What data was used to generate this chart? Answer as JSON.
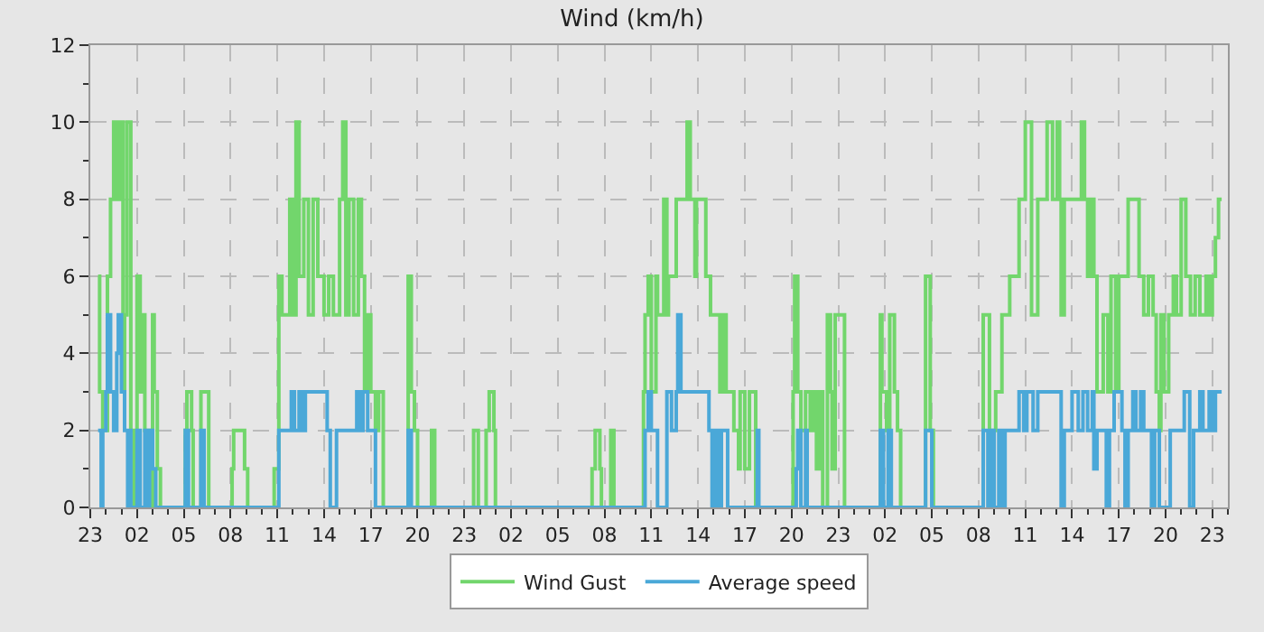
{
  "chart_data": {
    "type": "step",
    "title": "Wind (km/h)",
    "xlim": [
      "--01-01T23:00",
      "--01-05T00:00"
    ],
    "ylim": [
      0,
      12
    ],
    "xticks": [
      {
        "value": "--01-01T23:00",
        "label": "23"
      },
      {
        "value": "--01-02T00:00",
        "label": null
      },
      {
        "value": "--01-02T01:00",
        "label": null
      },
      {
        "value": "--01-02T02:00",
        "label": "02"
      },
      {
        "value": "--01-02T03:00",
        "label": null
      },
      {
        "value": "--01-02T04:00",
        "label": null
      },
      {
        "value": "--01-02T05:00",
        "label": "05"
      },
      {
        "value": "--01-02T06:00",
        "label": null
      },
      {
        "value": "--01-02T07:00",
        "label": null
      },
      {
        "value": "--01-02T08:00",
        "label": "08"
      },
      {
        "value": "--01-02T09:00",
        "label": null
      },
      {
        "value": "--01-02T10:00",
        "label": null
      },
      {
        "value": "--01-02T11:00",
        "label": "11"
      },
      {
        "value": "--01-02T12:00",
        "label": null
      },
      {
        "value": "--01-02T13:00",
        "label": null
      },
      {
        "value": "--01-02T14:00",
        "label": "14"
      },
      {
        "value": "--01-02T15:00",
        "label": null
      },
      {
        "value": "--01-02T16:00",
        "label": null
      },
      {
        "value": "--01-02T17:00",
        "label": "17"
      },
      {
        "value": "--01-02T18:00",
        "label": null
      },
      {
        "value": "--01-02T19:00",
        "label": null
      },
      {
        "value": "--01-02T20:00",
        "label": "20"
      },
      {
        "value": "--01-02T21:00",
        "label": null
      },
      {
        "value": "--01-02T22:00",
        "label": null
      },
      {
        "value": "--01-02T23:00",
        "label": "23"
      },
      {
        "value": "--01-03T00:00",
        "label": null
      },
      {
        "value": "--01-03T01:00",
        "label": null
      },
      {
        "value": "--01-03T02:00",
        "label": "02"
      },
      {
        "value": "--01-03T03:00",
        "label": null
      },
      {
        "value": "--01-03T04:00",
        "label": null
      },
      {
        "value": "--01-03T05:00",
        "label": "05"
      },
      {
        "value": "--01-03T06:00",
        "label": null
      },
      {
        "value": "--01-03T07:00",
        "label": null
      },
      {
        "value": "--01-03T08:00",
        "label": "08"
      },
      {
        "value": "--01-03T09:00",
        "label": null
      },
      {
        "value": "--01-03T10:00",
        "label": null
      },
      {
        "value": "--01-03T11:00",
        "label": "11"
      },
      {
        "value": "--01-03T12:00",
        "label": null
      },
      {
        "value": "--01-03T13:00",
        "label": null
      },
      {
        "value": "--01-03T14:00",
        "label": "14"
      },
      {
        "value": "--01-03T15:00",
        "label": null
      },
      {
        "value": "--01-03T16:00",
        "label": null
      },
      {
        "value": "--01-03T17:00",
        "label": "17"
      },
      {
        "value": "--01-03T18:00",
        "label": null
      },
      {
        "value": "--01-03T19:00",
        "label": null
      },
      {
        "value": "--01-03T20:00",
        "label": "20"
      },
      {
        "value": "--01-03T21:00",
        "label": null
      },
      {
        "value": "--01-03T22:00",
        "label": null
      },
      {
        "value": "--01-03T23:00",
        "label": "23"
      },
      {
        "value": "--01-04T00:00",
        "label": null
      },
      {
        "value": "--01-04T01:00",
        "label": null
      },
      {
        "value": "--01-04T02:00",
        "label": "02"
      },
      {
        "value": "--01-04T03:00",
        "label": null
      },
      {
        "value": "--01-04T04:00",
        "label": null
      },
      {
        "value": "--01-04T05:00",
        "label": "05"
      },
      {
        "value": "--01-04T06:00",
        "label": null
      },
      {
        "value": "--01-04T07:00",
        "label": null
      },
      {
        "value": "--01-04T08:00",
        "label": "08"
      },
      {
        "value": "--01-04T09:00",
        "label": null
      },
      {
        "value": "--01-04T10:00",
        "label": null
      },
      {
        "value": "--01-04T11:00",
        "label": "11"
      },
      {
        "value": "--01-04T12:00",
        "label": null
      },
      {
        "value": "--01-04T13:00",
        "label": null
      },
      {
        "value": "--01-04T14:00",
        "label": "14"
      },
      {
        "value": "--01-04T15:00",
        "label": null
      },
      {
        "value": "--01-04T16:00",
        "label": null
      },
      {
        "value": "--01-04T17:00",
        "label": "17"
      },
      {
        "value": "--01-04T18:00",
        "label": null
      },
      {
        "value": "--01-04T19:00",
        "label": null
      },
      {
        "value": "--01-04T20:00",
        "label": "20"
      },
      {
        "value": "--01-04T21:00",
        "label": null
      },
      {
        "value": "--01-04T22:00",
        "label": null
      },
      {
        "value": "--01-04T23:00",
        "label": "23"
      },
      {
        "value": "--01-05T00:00",
        "label": null
      }
    ],
    "yticks": [
      0,
      {
        "value": 1,
        "label": null
      },
      2,
      {
        "value": 3,
        "label": null
      },
      4,
      {
        "value": 5,
        "label": null
      },
      6,
      {
        "value": 7,
        "label": null
      },
      8,
      {
        "value": 9,
        "label": null
      },
      10,
      {
        "value": 11,
        "label": null
      },
      12
    ],
    "grid": true,
    "legend": "bottom",
    "marker": "none",
    "line_style": "solid",
    "series": [
      {
        "name": "Wind Gust",
        "color": "#72d66c",
        "x": [
          "--01-01T23:30",
          "--01-01T23:36",
          "--01-01T23:48",
          "--01-02T00:06",
          "--01-02T00:18",
          "--01-02T00:30",
          "--01-02T00:42",
          "--01-02T00:54",
          "--01-02T01:06",
          "--01-02T01:12",
          "--01-02T01:21",
          "--01-02T01:36",
          "--01-02T01:48",
          "--01-02T02:00",
          "--01-02T02:12",
          "--01-02T02:24",
          "--01-02T02:30",
          "--01-02T02:48",
          "--01-02T03:00",
          "--01-02T03:06",
          "--01-02T03:18",
          "--01-02T03:30",
          "--01-02T05:06",
          "--01-02T05:12",
          "--01-02T05:30",
          "--01-02T05:36",
          "--01-02T06:06",
          "--01-02T06:36",
          "--01-02T08:06",
          "--01-02T08:12",
          "--01-02T08:54",
          "--01-02T09:06",
          "--01-02T10:48",
          "--01-02T11:06",
          "--01-02T11:18",
          "--01-02T11:48",
          "--01-02T12:00",
          "--01-02T12:12",
          "--01-02T12:24",
          "--01-02T12:42",
          "--01-02T13:00",
          "--01-02T13:18",
          "--01-02T13:36",
          "--01-02T14:00",
          "--01-02T14:18",
          "--01-02T14:36",
          "--01-02T15:00",
          "--01-02T15:12",
          "--01-02T15:24",
          "--01-02T15:36",
          "--01-02T15:54",
          "--01-02T16:12",
          "--01-02T16:24",
          "--01-02T16:36",
          "--01-02T16:48",
          "--01-02T17:00",
          "--01-02T17:18",
          "--01-02T17:30",
          "--01-02T17:48",
          "--01-02T19:24",
          "--01-02T19:36",
          "--01-02T19:48",
          "--01-02T20:00",
          "--01-02T20:54",
          "--01-02T21:06",
          "--01-02T23:36",
          "--01-02T23:54",
          "--01-03T00:24",
          "--01-03T00:36",
          "--01-03T00:54",
          "--01-03T01:00",
          "--01-03T07:12",
          "--01-03T07:24",
          "--01-03T07:42",
          "--01-03T07:48",
          "--01-03T08:24",
          "--01-03T08:36",
          "--01-03T10:30",
          "--01-03T10:36",
          "--01-03T10:48",
          "--01-03T11:00",
          "--01-03T11:18",
          "--01-03T11:24",
          "--01-03T11:48",
          "--01-03T12:00",
          "--01-03T12:06",
          "--01-03T12:36",
          "--01-03T13:18",
          "--01-03T13:30",
          "--01-03T13:48",
          "--01-03T13:54",
          "--01-03T14:30",
          "--01-03T14:48",
          "--01-03T15:24",
          "--01-03T15:36",
          "--01-03T15:48",
          "--01-03T16:06",
          "--01-03T16:18",
          "--01-03T16:36",
          "--01-03T16:42",
          "--01-03T17:00",
          "--01-03T17:18",
          "--01-03T17:42",
          "--01-03T20:06",
          "--01-03T20:12",
          "--01-03T20:24",
          "--01-03T20:36",
          "--01-03T20:54",
          "--01-03T21:12",
          "--01-03T21:24",
          "--01-03T21:36",
          "--01-03T21:48",
          "--01-03T22:00",
          "--01-03T22:18",
          "--01-03T22:30",
          "--01-03T22:36",
          "--01-03T22:48",
          "--01-03T23:24",
          "--01-04T01:42",
          "--01-04T01:48",
          "--01-04T02:06",
          "--01-04T02:18",
          "--01-04T02:36",
          "--01-04T02:48",
          "--01-04T03:00",
          "--01-04T04:36",
          "--01-04T04:54",
          "--01-04T05:06",
          "--01-04T08:18",
          "--01-04T08:42",
          "--01-04T09:06",
          "--01-04T09:30",
          "--01-04T10:00",
          "--01-04T10:36",
          "--01-04T11:00",
          "--01-04T11:24",
          "--01-04T11:48",
          "--01-04T12:24",
          "--01-04T12:45",
          "--01-04T13:03",
          "--01-04T13:12",
          "--01-04T13:18",
          "--01-04T13:30",
          "--01-04T14:36",
          "--01-04T14:48",
          "--01-04T15:00",
          "--01-04T15:12",
          "--01-04T15:24",
          "--01-04T15:36",
          "--01-04T16:00",
          "--01-04T16:18",
          "--01-04T16:30",
          "--01-04T16:48",
          "--01-04T17:00",
          "--01-04T17:36",
          "--01-04T18:18",
          "--01-04T18:36",
          "--01-04T18:54",
          "--01-04T19:12",
          "--01-04T19:24",
          "--01-04T19:36",
          "--01-04T19:42",
          "--01-04T19:54",
          "--01-04T20:12",
          "--01-04T20:30",
          "--01-04T20:42",
          "--01-04T21:00",
          "--01-04T21:18",
          "--01-04T21:36",
          "--01-04T21:54",
          "--01-04T22:12",
          "--01-04T22:36",
          "--01-04T22:48",
          "--01-04T23:00",
          "--01-04T23:12",
          "--01-04T23:24",
          "--01-04T23:36"
        ],
        "values": [
          6,
          3,
          2,
          6,
          8,
          10,
          8,
          10,
          3,
          5,
          10,
          2,
          0,
          6,
          3,
          5,
          2,
          0,
          5,
          3,
          1,
          0,
          2,
          3,
          2,
          0,
          3,
          0,
          1,
          2,
          1,
          0,
          1,
          6,
          5,
          8,
          5,
          10,
          6,
          8,
          5,
          8,
          6,
          5,
          6,
          5,
          8,
          10,
          5,
          8,
          5,
          8,
          6,
          3,
          5,
          3,
          2,
          3,
          0,
          6,
          3,
          2,
          0,
          2,
          0,
          2,
          0,
          2,
          3,
          2,
          0,
          1,
          2,
          1,
          0,
          2,
          0,
          3,
          5,
          6,
          3,
          6,
          5,
          8,
          5,
          6,
          8,
          10,
          8,
          6,
          8,
          6,
          5,
          3,
          5,
          3,
          3,
          2,
          1,
          3,
          1,
          3,
          0,
          3,
          6,
          3,
          2,
          3,
          2,
          3,
          1,
          3,
          0,
          5,
          3,
          1,
          5,
          0,
          5,
          3,
          2,
          5,
          3,
          2,
          0,
          6,
          2,
          0,
          5,
          2,
          3,
          5,
          6,
          8,
          10,
          5,
          8,
          10,
          8,
          10,
          8,
          5,
          8,
          10,
          8,
          6,
          8,
          6,
          3,
          5,
          3,
          6,
          3,
          6,
          8,
          6,
          5,
          6,
          5,
          3,
          2,
          5,
          3,
          5,
          6,
          5,
          8,
          6,
          5,
          6,
          5,
          6,
          5,
          6,
          7,
          8,
          8
        ]
      },
      {
        "name": "Average speed",
        "color": "#4aa8d8",
        "x": [
          "--01-01T23:30",
          "--01-01T23:42",
          "--01-01T23:48",
          "--01-02T00:00",
          "--01-02T00:06",
          "--01-02T00:18",
          "--01-02T00:30",
          "--01-02T00:42",
          "--01-02T00:48",
          "--01-02T01:00",
          "--01-02T01:12",
          "--01-02T01:24",
          "--01-02T01:30",
          "--01-02T01:36",
          "--01-02T02:00",
          "--01-02T02:12",
          "--01-02T02:30",
          "--01-02T02:36",
          "--01-02T02:48",
          "--01-02T03:00",
          "--01-02T03:12",
          "--01-02T05:06",
          "--01-02T05:18",
          "--01-02T06:06",
          "--01-02T06:18",
          "--01-02T11:06",
          "--01-02T11:54",
          "--01-02T12:06",
          "--01-02T12:24",
          "--01-02T12:36",
          "--01-02T12:48",
          "--01-02T14:12",
          "--01-02T14:24",
          "--01-02T14:48",
          "--01-02T16:06",
          "--01-02T16:18",
          "--01-02T16:30",
          "--01-02T16:48",
          "--01-02T17:18",
          "--01-02T19:24",
          "--01-02T19:36",
          "--01-03T10:36",
          "--01-03T10:48",
          "--01-03T11:00",
          "--01-03T11:24",
          "--01-03T12:00",
          "--01-03T12:18",
          "--01-03T12:36",
          "--01-03T12:42",
          "--01-03T12:54",
          "--01-03T14:42",
          "--01-03T14:54",
          "--01-03T15:06",
          "--01-03T15:18",
          "--01-03T15:30",
          "--01-03T15:54",
          "--01-03T17:48",
          "--01-03T17:54",
          "--01-03T20:18",
          "--01-03T20:24",
          "--01-03T20:36",
          "--01-03T20:54",
          "--01-03T21:00",
          "--01-04T01:42",
          "--01-04T01:54",
          "--01-04T02:12",
          "--01-04T02:24",
          "--01-04T04:36",
          "--01-04T05:00",
          "--01-04T08:18",
          "--01-04T08:36",
          "--01-04T08:48",
          "--01-04T09:00",
          "--01-04T09:18",
          "--01-04T09:30",
          "--01-04T09:42",
          "--01-04T10:36",
          "--01-04T10:54",
          "--01-04T11:06",
          "--01-04T11:30",
          "--01-04T11:48",
          "--01-04T13:18",
          "--01-04T13:30",
          "--01-04T14:00",
          "--01-04T14:24",
          "--01-04T14:42",
          "--01-04T15:00",
          "--01-04T15:18",
          "--01-04T15:24",
          "--01-04T15:36",
          "--01-04T16:00",
          "--01-04T16:12",
          "--01-04T16:24",
          "--01-04T16:42",
          "--01-04T17:12",
          "--01-04T17:24",
          "--01-04T17:36",
          "--01-04T17:54",
          "--01-04T18:06",
          "--01-04T18:24",
          "--01-04T18:36",
          "--01-04T19:06",
          "--01-04T19:18",
          "--01-04T19:36",
          "--01-04T20:18",
          "--01-04T21:12",
          "--01-04T21:33",
          "--01-04T21:48",
          "--01-04T22:12",
          "--01-04T22:24",
          "--01-04T22:48",
          "--01-04T23:00",
          "--01-04T23:12",
          "--01-04T23:36"
        ],
        "values": [
          2,
          0,
          2,
          3,
          5,
          3,
          2,
          4,
          5,
          3,
          2,
          0,
          2,
          0,
          2,
          0,
          2,
          0,
          2,
          1,
          0,
          2,
          0,
          2,
          0,
          2,
          3,
          2,
          3,
          2,
          3,
          2,
          0,
          2,
          3,
          2,
          3,
          2,
          0,
          2,
          0,
          2,
          3,
          2,
          0,
          3,
          2,
          3,
          5,
          3,
          2,
          0,
          2,
          0,
          2,
          0,
          2,
          0,
          1,
          2,
          0,
          2,
          0,
          2,
          0,
          2,
          0,
          2,
          0,
          2,
          0,
          2,
          0,
          2,
          0,
          2,
          3,
          2,
          3,
          2,
          3,
          0,
          2,
          3,
          2,
          3,
          2,
          3,
          1,
          2,
          2,
          0,
          2,
          3,
          2,
          0,
          2,
          3,
          2,
          3,
          2,
          0,
          2,
          0,
          2,
          3,
          0,
          2,
          3,
          2,
          3,
          2,
          3,
          3
        ]
      }
    ]
  }
}
